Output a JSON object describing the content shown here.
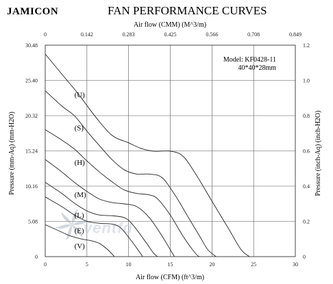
{
  "brand": "JAMICON",
  "title": "FAN PERFORMANCE CURVES",
  "watermark": "ventfd",
  "model": {
    "line1": "Model: KF0428-11",
    "line2": "40*40*28mm"
  },
  "chart_data": {
    "type": "line",
    "title": "FAN PERFORMANCE CURVES",
    "xlabel_bottom": "Air flow  (CFM) (ft^3/m)",
    "xlabel_top": "Air flow  (CMM) (M^3/m)",
    "ylabel_left": "Pressure (mm-Aq) (mm-H2O)",
    "ylabel_right": "Pressure (inch-Aq) (inch-H2O)",
    "xlim": [
      0,
      30
    ],
    "ylim": [
      0,
      30.48
    ],
    "x_ticks_bottom": [
      "0",
      "5",
      "10",
      "15",
      "20",
      "25",
      "30"
    ],
    "x_ticks_top": [
      "0",
      "0.142",
      "0.283",
      "0.425",
      "0.566",
      "0.708",
      "0.849"
    ],
    "y_ticks_left": [
      "0",
      "5.08",
      "10.16",
      "15.24",
      "20.32",
      "25.40",
      "30.48"
    ],
    "y_ticks_right": [
      "0",
      "0.2",
      "0.4",
      "0.6",
      "0.8",
      "1.0",
      "1.2"
    ],
    "grid": true,
    "series": [
      {
        "name": "(U)",
        "points": [
          [
            0,
            29.2
          ],
          [
            2,
            26.3
          ],
          [
            4,
            23.4
          ],
          [
            6,
            20.2
          ],
          [
            8,
            17.5
          ],
          [
            10,
            16.4
          ],
          [
            11.5,
            15.6
          ],
          [
            13,
            15.2
          ],
          [
            15,
            15.2
          ],
          [
            16.5,
            14.5
          ],
          [
            18,
            12.0
          ],
          [
            20,
            8.0
          ],
          [
            22,
            4.0
          ],
          [
            23.5,
            1.0
          ],
          [
            24.5,
            0
          ]
        ]
      },
      {
        "name": "(S)",
        "points": [
          [
            0,
            23.9
          ],
          [
            2,
            21.7
          ],
          [
            3.5,
            20.3
          ],
          [
            5,
            18.1
          ],
          [
            6.5,
            16.0
          ],
          [
            8,
            14.0
          ],
          [
            9.5,
            12.5
          ],
          [
            11,
            11.9
          ],
          [
            12.5,
            11.9
          ],
          [
            14,
            11.4
          ],
          [
            15.5,
            9.0
          ],
          [
            17,
            6.0
          ],
          [
            18.5,
            3.0
          ],
          [
            19.5,
            1.0
          ],
          [
            20.5,
            0
          ]
        ]
      },
      {
        "name": "(H)",
        "points": [
          [
            0,
            18.3
          ],
          [
            2,
            16.8
          ],
          [
            3.5,
            15.5
          ],
          [
            5,
            13.8
          ],
          [
            6.5,
            12.2
          ],
          [
            8,
            10.8
          ],
          [
            9.5,
            9.6
          ],
          [
            11,
            9.1
          ],
          [
            12.5,
            8.9
          ],
          [
            13.5,
            8.3
          ],
          [
            15,
            6.0
          ],
          [
            16.5,
            3.0
          ],
          [
            18,
            0.5
          ],
          [
            18.5,
            0
          ]
        ]
      },
      {
        "name": "(M)",
        "points": [
          [
            0,
            14.0
          ],
          [
            2,
            12.2
          ],
          [
            3.5,
            10.7
          ],
          [
            5,
            9.4
          ],
          [
            6.5,
            8.3
          ],
          [
            8,
            7.8
          ],
          [
            9.5,
            7.6
          ],
          [
            11,
            7.2
          ],
          [
            12.5,
            5.6
          ],
          [
            14,
            3.0
          ],
          [
            15,
            1.0
          ],
          [
            15.5,
            0
          ]
        ]
      },
      {
        "name": "(L)",
        "points": [
          [
            0,
            10.7
          ],
          [
            2,
            9.1
          ],
          [
            3.5,
            7.7
          ],
          [
            5,
            6.6
          ],
          [
            6.5,
            6.0
          ],
          [
            8,
            5.9
          ],
          [
            9.5,
            5.6
          ],
          [
            10.5,
            4.6
          ],
          [
            12,
            2.2
          ],
          [
            13,
            0.5
          ],
          [
            13.5,
            0
          ]
        ]
      },
      {
        "name": "(E)",
        "points": [
          [
            0,
            8.6
          ],
          [
            2,
            7.2
          ],
          [
            3.5,
            6.0
          ],
          [
            5,
            5.1
          ],
          [
            6.5,
            4.8
          ],
          [
            8,
            4.7
          ],
          [
            9,
            4.2
          ],
          [
            10,
            2.8
          ],
          [
            11,
            1.2
          ],
          [
            11.7,
            0
          ]
        ]
      },
      {
        "name": "(V)",
        "points": [
          [
            0,
            4.6
          ],
          [
            1.5,
            3.8
          ],
          [
            3,
            3.0
          ],
          [
            4.5,
            2.5
          ],
          [
            5.5,
            2.3
          ],
          [
            6.5,
            1.9
          ],
          [
            7.5,
            1.0
          ],
          [
            8.3,
            0
          ]
        ]
      }
    ],
    "curve_labels": [
      {
        "text": "(U)",
        "x": 3.5,
        "y": 23.0
      },
      {
        "text": "(S)",
        "x": 3.5,
        "y": 18.2
      },
      {
        "text": "(H)",
        "x": 3.5,
        "y": 13.2
      },
      {
        "text": "(M)",
        "x": 3.5,
        "y": 8.6
      },
      {
        "text": "(L)",
        "x": 3.5,
        "y": 5.6
      },
      {
        "text": "(E)",
        "x": 3.5,
        "y": 3.4
      },
      {
        "text": "(V)",
        "x": 3.5,
        "y": 1.2
      }
    ]
  }
}
